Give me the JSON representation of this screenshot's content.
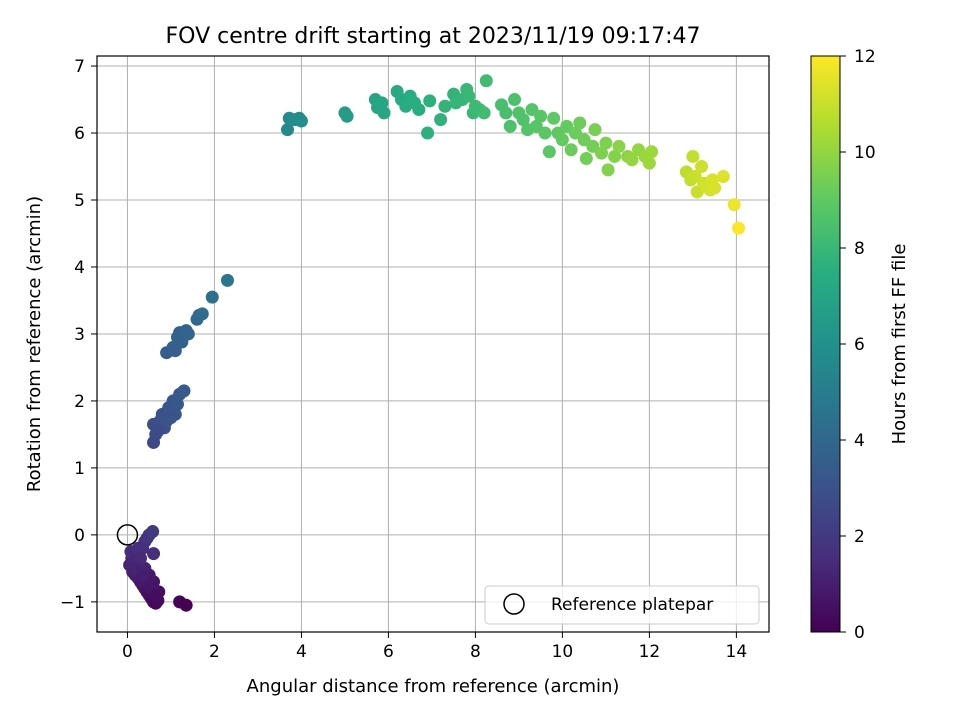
{
  "chart_data": {
    "type": "scatter",
    "title": "FOV centre drift starting at 2023/11/19 09:17:47",
    "xlabel": "Angular distance from reference (arcmin)",
    "ylabel": "Rotation from reference (arcmin)",
    "xlim": [
      -0.7,
      14.75
    ],
    "ylim": [
      -1.45,
      7.15
    ],
    "xticks": [
      "0",
      "2",
      "4",
      "6",
      "8",
      "10",
      "12",
      "14"
    ],
    "yticks": [
      "−1",
      "0",
      "1",
      "2",
      "3",
      "4",
      "5",
      "6",
      "7"
    ],
    "grid": true,
    "legend": {
      "placement": "lower-right",
      "label": "Reference platepar"
    },
    "reference_point": {
      "x": 0,
      "y": 0
    },
    "colorbar": {
      "label": "Hours from first FF file",
      "range": [
        0,
        12
      ],
      "ticks": [
        "0",
        "2",
        "4",
        "6",
        "8",
        "10",
        "12"
      ],
      "colormap": "viridis"
    },
    "points": [
      {
        "x": 0.1,
        "y": -0.35,
        "h": 1.3
      },
      {
        "x": 0.05,
        "y": -0.45,
        "h": 1.2
      },
      {
        "x": 0.12,
        "y": -0.55,
        "h": 1.1
      },
      {
        "x": 0.08,
        "y": -0.25,
        "h": 1.5
      },
      {
        "x": 0.15,
        "y": -0.3,
        "h": 1.4
      },
      {
        "x": 0.2,
        "y": -0.4,
        "h": 1.3
      },
      {
        "x": 0.18,
        "y": -0.6,
        "h": 1.0
      },
      {
        "x": 0.25,
        "y": -0.65,
        "h": 1.0
      },
      {
        "x": 0.3,
        "y": -0.7,
        "h": 0.9
      },
      {
        "x": 0.35,
        "y": -0.75,
        "h": 0.8
      },
      {
        "x": 0.4,
        "y": -0.8,
        "h": 0.7
      },
      {
        "x": 0.45,
        "y": -0.85,
        "h": 0.6
      },
      {
        "x": 0.5,
        "y": -0.9,
        "h": 0.5
      },
      {
        "x": 0.55,
        "y": -0.95,
        "h": 0.4
      },
      {
        "x": 0.6,
        "y": -1.0,
        "h": 0.3
      },
      {
        "x": 0.65,
        "y": -1.02,
        "h": 0.2
      },
      {
        "x": 0.7,
        "y": -0.98,
        "h": 0.3
      },
      {
        "x": 0.72,
        "y": -0.85,
        "h": 0.5
      },
      {
        "x": 0.6,
        "y": -0.7,
        "h": 0.7
      },
      {
        "x": 0.5,
        "y": -0.6,
        "h": 0.9
      },
      {
        "x": 0.4,
        "y": -0.5,
        "h": 1.1
      },
      {
        "x": 0.3,
        "y": -0.45,
        "h": 1.2
      },
      {
        "x": 0.35,
        "y": -0.2,
        "h": 1.6
      },
      {
        "x": 0.4,
        "y": -0.1,
        "h": 1.7
      },
      {
        "x": 0.45,
        "y": -0.05,
        "h": 1.8
      },
      {
        "x": 0.5,
        "y": 0.0,
        "h": 1.9
      },
      {
        "x": 0.58,
        "y": 0.05,
        "h": 2.0
      },
      {
        "x": 0.6,
        "y": -0.28,
        "h": 1.6
      },
      {
        "x": 0.25,
        "y": -0.2,
        "h": 1.6
      },
      {
        "x": 0.3,
        "y": -0.35,
        "h": 1.4
      },
      {
        "x": 0.45,
        "y": -0.7,
        "h": 0.8
      },
      {
        "x": 0.55,
        "y": -0.8,
        "h": 0.7
      },
      {
        "x": 0.35,
        "y": -0.6,
        "h": 1.0
      },
      {
        "x": 0.15,
        "y": -0.5,
        "h": 1.2
      },
      {
        "x": 0.65,
        "y": -0.9,
        "h": 0.4
      },
      {
        "x": 1.2,
        "y": -1.0,
        "h": 0.1
      },
      {
        "x": 1.35,
        "y": -1.05,
        "h": 0.0
      },
      {
        "x": 0.6,
        "y": 1.38,
        "h": 2.6
      },
      {
        "x": 0.65,
        "y": 1.5,
        "h": 2.7
      },
      {
        "x": 0.7,
        "y": 1.6,
        "h": 2.8
      },
      {
        "x": 0.6,
        "y": 1.65,
        "h": 2.8
      },
      {
        "x": 0.75,
        "y": 1.7,
        "h": 2.9
      },
      {
        "x": 0.85,
        "y": 1.6,
        "h": 2.9
      },
      {
        "x": 0.8,
        "y": 1.8,
        "h": 3.0
      },
      {
        "x": 0.9,
        "y": 1.75,
        "h": 3.0
      },
      {
        "x": 0.95,
        "y": 1.9,
        "h": 3.1
      },
      {
        "x": 1.0,
        "y": 1.85,
        "h": 3.1
      },
      {
        "x": 1.05,
        "y": 2.0,
        "h": 3.2
      },
      {
        "x": 1.1,
        "y": 1.8,
        "h": 3.2
      },
      {
        "x": 1.15,
        "y": 1.95,
        "h": 3.3
      },
      {
        "x": 1.2,
        "y": 2.1,
        "h": 3.3
      },
      {
        "x": 1.3,
        "y": 2.15,
        "h": 3.4
      },
      {
        "x": 0.7,
        "y": 1.55,
        "h": 2.7
      },
      {
        "x": 0.9,
        "y": 1.7,
        "h": 3.0
      },
      {
        "x": 1.0,
        "y": 1.75,
        "h": 3.1
      },
      {
        "x": 0.9,
        "y": 2.72,
        "h": 3.5
      },
      {
        "x": 1.05,
        "y": 2.8,
        "h": 3.6
      },
      {
        "x": 1.1,
        "y": 2.75,
        "h": 3.6
      },
      {
        "x": 1.15,
        "y": 2.95,
        "h": 3.7
      },
      {
        "x": 1.2,
        "y": 3.02,
        "h": 3.7
      },
      {
        "x": 1.3,
        "y": 2.98,
        "h": 3.8
      },
      {
        "x": 1.35,
        "y": 3.05,
        "h": 3.8
      },
      {
        "x": 1.25,
        "y": 2.88,
        "h": 3.7
      },
      {
        "x": 1.4,
        "y": 3.0,
        "h": 3.9
      },
      {
        "x": 1.6,
        "y": 3.22,
        "h": 4.0
      },
      {
        "x": 1.65,
        "y": 3.28,
        "h": 4.1
      },
      {
        "x": 1.72,
        "y": 3.3,
        "h": 4.2
      },
      {
        "x": 1.95,
        "y": 3.55,
        "h": 4.4
      },
      {
        "x": 2.3,
        "y": 3.8,
        "h": 4.7
      },
      {
        "x": 3.68,
        "y": 6.05,
        "h": 5.6
      },
      {
        "x": 3.72,
        "y": 6.22,
        "h": 5.7
      },
      {
        "x": 3.85,
        "y": 6.2,
        "h": 5.8
      },
      {
        "x": 3.95,
        "y": 6.22,
        "h": 5.8
      },
      {
        "x": 4.0,
        "y": 6.18,
        "h": 5.9
      },
      {
        "x": 5.0,
        "y": 6.3,
        "h": 6.5
      },
      {
        "x": 5.05,
        "y": 6.25,
        "h": 6.6
      },
      {
        "x": 5.7,
        "y": 6.5,
        "h": 7.0
      },
      {
        "x": 5.75,
        "y": 6.38,
        "h": 7.0
      },
      {
        "x": 5.85,
        "y": 6.45,
        "h": 7.1
      },
      {
        "x": 5.9,
        "y": 6.3,
        "h": 7.1
      },
      {
        "x": 6.2,
        "y": 6.62,
        "h": 7.3
      },
      {
        "x": 6.3,
        "y": 6.5,
        "h": 7.3
      },
      {
        "x": 6.4,
        "y": 6.4,
        "h": 7.4
      },
      {
        "x": 6.5,
        "y": 6.55,
        "h": 7.4
      },
      {
        "x": 6.6,
        "y": 6.45,
        "h": 7.5
      },
      {
        "x": 6.7,
        "y": 6.35,
        "h": 7.5
      },
      {
        "x": 6.9,
        "y": 6.0,
        "h": 7.6
      },
      {
        "x": 6.95,
        "y": 6.48,
        "h": 7.6
      },
      {
        "x": 7.2,
        "y": 6.2,
        "h": 7.7
      },
      {
        "x": 7.3,
        "y": 6.4,
        "h": 7.8
      },
      {
        "x": 7.5,
        "y": 6.58,
        "h": 7.8
      },
      {
        "x": 7.55,
        "y": 6.45,
        "h": 7.9
      },
      {
        "x": 7.7,
        "y": 6.5,
        "h": 7.9
      },
      {
        "x": 7.8,
        "y": 6.65,
        "h": 8.0
      },
      {
        "x": 7.85,
        "y": 6.55,
        "h": 8.0
      },
      {
        "x": 7.95,
        "y": 6.3,
        "h": 8.0
      },
      {
        "x": 8.0,
        "y": 6.4,
        "h": 8.1
      },
      {
        "x": 8.1,
        "y": 6.35,
        "h": 8.1
      },
      {
        "x": 8.2,
        "y": 6.3,
        "h": 8.2
      },
      {
        "x": 8.25,
        "y": 6.78,
        "h": 8.2
      },
      {
        "x": 8.6,
        "y": 6.42,
        "h": 8.4
      },
      {
        "x": 8.7,
        "y": 6.3,
        "h": 8.4
      },
      {
        "x": 8.8,
        "y": 6.1,
        "h": 8.5
      },
      {
        "x": 8.9,
        "y": 6.5,
        "h": 8.5
      },
      {
        "x": 9.0,
        "y": 6.3,
        "h": 8.6
      },
      {
        "x": 9.1,
        "y": 6.2,
        "h": 8.6
      },
      {
        "x": 9.2,
        "y": 6.05,
        "h": 8.7
      },
      {
        "x": 9.3,
        "y": 6.35,
        "h": 8.7
      },
      {
        "x": 9.4,
        "y": 6.1,
        "h": 8.8
      },
      {
        "x": 9.5,
        "y": 6.25,
        "h": 8.8
      },
      {
        "x": 9.6,
        "y": 6.0,
        "h": 8.9
      },
      {
        "x": 9.7,
        "y": 5.72,
        "h": 8.9
      },
      {
        "x": 9.8,
        "y": 6.22,
        "h": 9.0
      },
      {
        "x": 9.9,
        "y": 6.0,
        "h": 9.0
      },
      {
        "x": 10.0,
        "y": 5.9,
        "h": 9.1
      },
      {
        "x": 10.1,
        "y": 6.1,
        "h": 9.1
      },
      {
        "x": 10.2,
        "y": 5.75,
        "h": 9.2
      },
      {
        "x": 10.3,
        "y": 6.0,
        "h": 9.2
      },
      {
        "x": 10.4,
        "y": 6.15,
        "h": 9.3
      },
      {
        "x": 10.5,
        "y": 5.9,
        "h": 9.3
      },
      {
        "x": 10.55,
        "y": 5.62,
        "h": 9.4
      },
      {
        "x": 10.7,
        "y": 5.8,
        "h": 9.4
      },
      {
        "x": 10.75,
        "y": 6.05,
        "h": 9.5
      },
      {
        "x": 10.9,
        "y": 5.7,
        "h": 9.6
      },
      {
        "x": 11.0,
        "y": 5.85,
        "h": 9.6
      },
      {
        "x": 11.05,
        "y": 5.45,
        "h": 9.7
      },
      {
        "x": 11.2,
        "y": 5.65,
        "h": 9.7
      },
      {
        "x": 11.3,
        "y": 5.8,
        "h": 9.8
      },
      {
        "x": 11.5,
        "y": 5.65,
        "h": 9.9
      },
      {
        "x": 11.6,
        "y": 5.6,
        "h": 10.0
      },
      {
        "x": 11.75,
        "y": 5.75,
        "h": 10.0
      },
      {
        "x": 11.9,
        "y": 5.65,
        "h": 10.1
      },
      {
        "x": 12.0,
        "y": 5.55,
        "h": 10.2
      },
      {
        "x": 12.05,
        "y": 5.72,
        "h": 10.2
      },
      {
        "x": 12.85,
        "y": 5.42,
        "h": 10.8
      },
      {
        "x": 12.95,
        "y": 5.3,
        "h": 10.9
      },
      {
        "x": 13.0,
        "y": 5.65,
        "h": 10.9
      },
      {
        "x": 13.05,
        "y": 5.35,
        "h": 11.0
      },
      {
        "x": 13.1,
        "y": 5.12,
        "h": 11.0
      },
      {
        "x": 13.2,
        "y": 5.5,
        "h": 11.1
      },
      {
        "x": 13.25,
        "y": 5.25,
        "h": 11.1
      },
      {
        "x": 13.3,
        "y": 5.2,
        "h": 11.2
      },
      {
        "x": 13.4,
        "y": 5.15,
        "h": 11.2
      },
      {
        "x": 13.45,
        "y": 5.3,
        "h": 11.3
      },
      {
        "x": 13.5,
        "y": 5.18,
        "h": 11.3
      },
      {
        "x": 13.7,
        "y": 5.35,
        "h": 11.4
      },
      {
        "x": 13.95,
        "y": 4.93,
        "h": 11.7
      },
      {
        "x": 14.05,
        "y": 4.58,
        "h": 12.0
      }
    ]
  }
}
